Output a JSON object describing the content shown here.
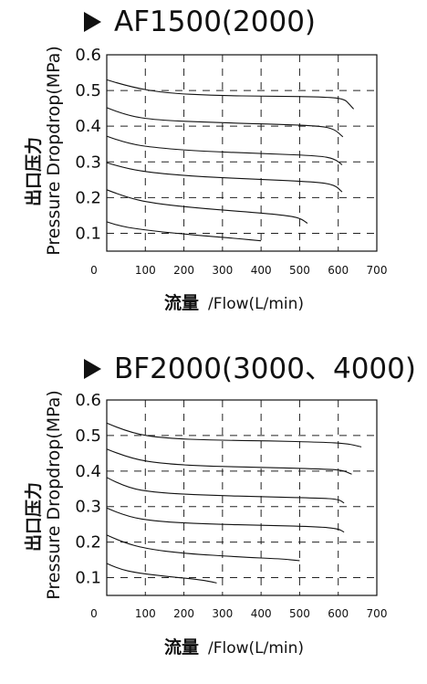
{
  "chart_data": [
    {
      "type": "line",
      "title": "AF1500(2000)",
      "ylabel_zh": "出口压力",
      "ylabel": "Pressure Dropdrop(MPa)",
      "xlabel_zh": "流量",
      "xlabel": " /Flow(L/min)",
      "xlim": [
        0,
        700
      ],
      "ylim": [
        0.05,
        0.6
      ],
      "x_ticks": [
        0,
        100,
        200,
        300,
        400,
        500,
        600,
        700
      ],
      "y_ticks": [
        0.1,
        0.2,
        0.3,
        0.4,
        0.5,
        0.6
      ],
      "y_tick_labels": [
        "0.1",
        "0.2",
        "0.3",
        "0.4",
        "0.5",
        "0.6"
      ],
      "grid": "dashed",
      "series": [
        {
          "x": [
            0,
            30,
            80,
            150,
            250,
            330,
            400
          ],
          "y": [
            0.132,
            0.121,
            0.112,
            0.103,
            0.093,
            0.086,
            0.079
          ]
        },
        {
          "x": [
            0,
            50,
            120,
            250,
            400,
            480,
            505,
            520
          ],
          "y": [
            0.222,
            0.201,
            0.184,
            0.169,
            0.157,
            0.148,
            0.14,
            0.128
          ]
        },
        {
          "x": [
            0,
            50,
            130,
            250,
            400,
            540,
            590,
            610
          ],
          "y": [
            0.298,
            0.281,
            0.268,
            0.258,
            0.251,
            0.244,
            0.236,
            0.216
          ]
        },
        {
          "x": [
            0,
            50,
            130,
            260,
            420,
            550,
            590,
            610
          ],
          "y": [
            0.372,
            0.352,
            0.339,
            0.329,
            0.323,
            0.317,
            0.309,
            0.292
          ]
        },
        {
          "x": [
            0,
            50,
            130,
            260,
            420,
            550,
            590,
            612
          ],
          "y": [
            0.452,
            0.43,
            0.417,
            0.411,
            0.406,
            0.401,
            0.392,
            0.37
          ]
        },
        {
          "x": [
            0,
            60,
            150,
            280,
            420,
            560,
            615,
            630,
            640
          ],
          "y": [
            0.53,
            0.51,
            0.493,
            0.486,
            0.484,
            0.482,
            0.477,
            0.46,
            0.448
          ]
        }
      ]
    },
    {
      "type": "line",
      "title": "BF2000(3000、4000)",
      "ylabel_zh": "出口压力",
      "ylabel": "Pressure Dropdrop(MPa)",
      "xlabel_zh": "流量",
      "xlabel": " /Flow(L/min)",
      "xlim": [
        0,
        700
      ],
      "ylim": [
        0.05,
        0.6
      ],
      "x_ticks": [
        0,
        100,
        200,
        300,
        400,
        500,
        600,
        700
      ],
      "y_ticks": [
        0.1,
        0.2,
        0.3,
        0.4,
        0.5,
        0.6
      ],
      "y_tick_labels": [
        "0.1",
        "0.2",
        "0.3",
        "0.4",
        "0.5",
        "0.6"
      ],
      "grid": "dashed",
      "series": [
        {
          "x": [
            0,
            30,
            80,
            150,
            220,
            260,
            285
          ],
          "y": [
            0.14,
            0.125,
            0.113,
            0.104,
            0.097,
            0.091,
            0.085
          ]
        },
        {
          "x": [
            0,
            40,
            100,
            200,
            350,
            450,
            500
          ],
          "y": [
            0.22,
            0.2,
            0.182,
            0.168,
            0.158,
            0.153,
            0.148
          ]
        },
        {
          "x": [
            0,
            50,
            130,
            260,
            420,
            550,
            600,
            615
          ],
          "y": [
            0.296,
            0.272,
            0.258,
            0.251,
            0.247,
            0.243,
            0.238,
            0.228
          ]
        },
        {
          "x": [
            0,
            50,
            130,
            260,
            420,
            550,
            600,
            615
          ],
          "y": [
            0.382,
            0.353,
            0.339,
            0.332,
            0.327,
            0.324,
            0.321,
            0.31
          ]
        },
        {
          "x": [
            0,
            60,
            150,
            280,
            420,
            550,
            610,
            635
          ],
          "y": [
            0.462,
            0.435,
            0.42,
            0.413,
            0.41,
            0.406,
            0.403,
            0.391
          ]
        },
        {
          "x": [
            0,
            60,
            150,
            280,
            420,
            560,
            620,
            660
          ],
          "y": [
            0.535,
            0.507,
            0.492,
            0.487,
            0.485,
            0.481,
            0.478,
            0.468
          ]
        }
      ]
    }
  ]
}
